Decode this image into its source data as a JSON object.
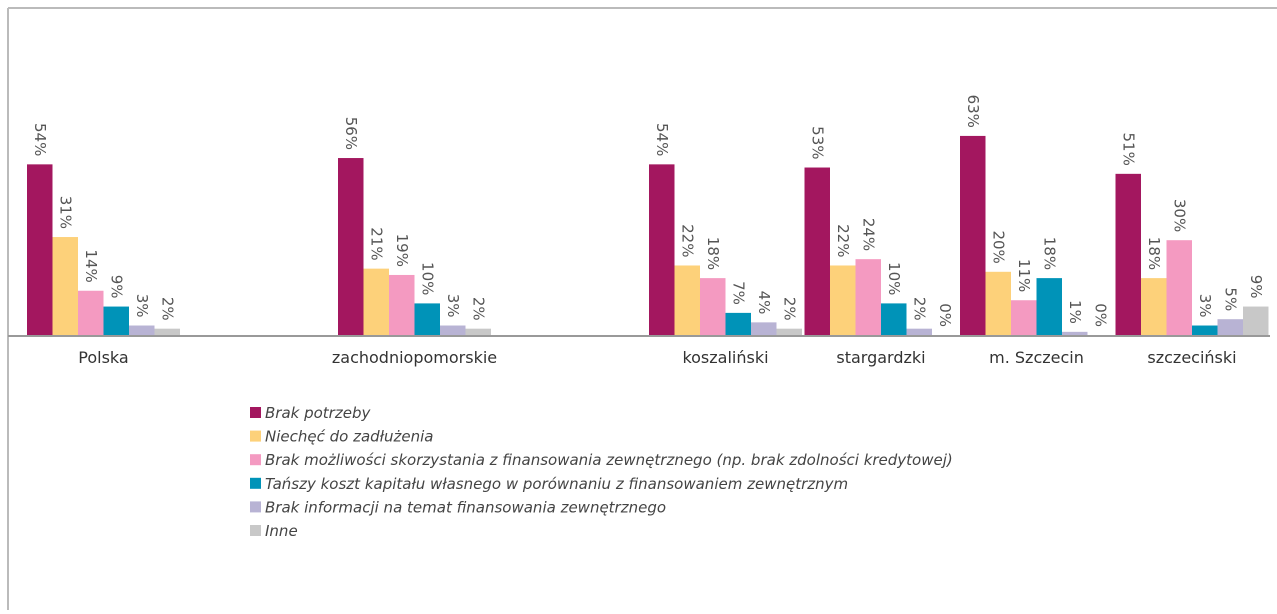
{
  "chart_data": {
    "type": "bar",
    "categories": [
      "Polska",
      null,
      "zachodniopomorskie",
      null,
      "koszaliński",
      "stargardzki",
      "m. Szczecin",
      "szczeciński"
    ],
    "ylim": [
      0,
      100
    ],
    "series": [
      {
        "name": "Brak potrzeby",
        "color": "#a3175f",
        "values": [
          54,
          null,
          56,
          null,
          54,
          53,
          63,
          51
        ],
        "value_labels": [
          "54%",
          null,
          "56%",
          null,
          "54%",
          "53%",
          "63%",
          "51%"
        ]
      },
      {
        "name": "Niechęć do zadłużenia",
        "color": "#fdd17a",
        "values": [
          31,
          null,
          21,
          null,
          22,
          22,
          20,
          18
        ],
        "value_labels": [
          "31%",
          null,
          "21%",
          null,
          "22%",
          "22%",
          "20%",
          "18%"
        ]
      },
      {
        "name": "Brak możliwości skorzystania z finansowania zewnętrznego (np. brak zdolności kredytowej)",
        "color": "#f49ac1",
        "values": [
          14,
          null,
          19,
          null,
          18,
          24,
          11,
          30
        ],
        "value_labels": [
          "14%",
          null,
          "19%",
          null,
          "18%",
          "24%",
          "11%",
          "30%"
        ]
      },
      {
        "name": "Tańszy koszt kapitału własnego w porównaniu z finansowaniem zewnętrznym",
        "color": "#0093b8",
        "values": [
          9,
          null,
          10,
          null,
          7,
          10,
          18,
          3
        ],
        "value_labels": [
          "9%",
          null,
          "10%",
          null,
          "7%",
          "10%",
          "18%",
          "3%"
        ]
      },
      {
        "name": "Brak informacji na temat finansowania zewnętrznego",
        "color": "#b8b3d4",
        "values": [
          3,
          null,
          3,
          null,
          4,
          2,
          1,
          5
        ],
        "value_labels": [
          "3%",
          null,
          "3%",
          null,
          "4%",
          "2%",
          "1%",
          "5%"
        ]
      },
      {
        "name": "Inne",
        "color": "#c8c8c8",
        "values": [
          2,
          null,
          2,
          null,
          2,
          0,
          0,
          9
        ],
        "value_labels": [
          "2%",
          null,
          "2%",
          null,
          "2%",
          "0%",
          "0%",
          "9%"
        ]
      }
    ]
  }
}
